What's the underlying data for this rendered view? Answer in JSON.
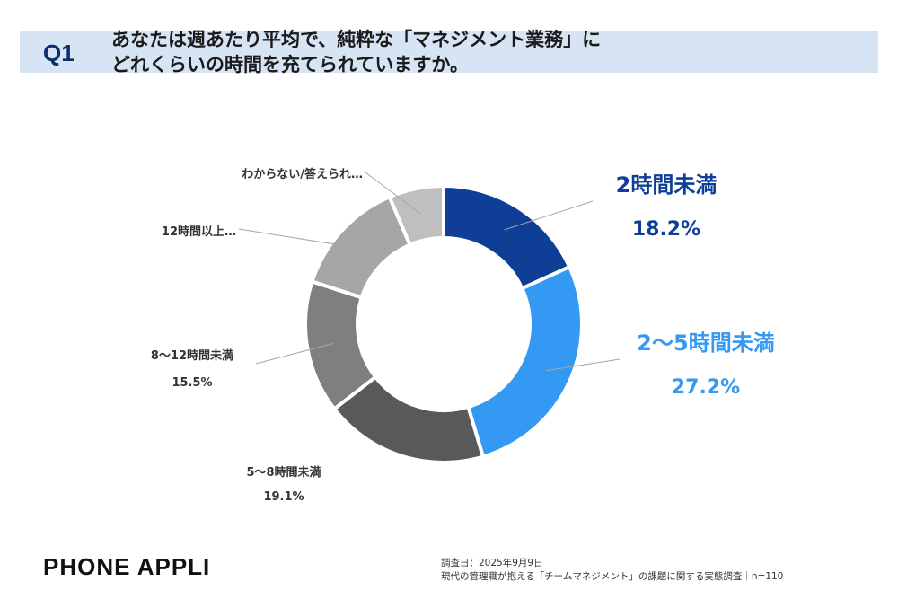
{
  "question": {
    "number": "Q1",
    "line1": "あなたは週あたり平均で、純粋な「マネジメント業務」に",
    "line2": "どれくらいの時間を充てられていますか。"
  },
  "chart_data": {
    "type": "pie",
    "variant": "donut",
    "slices": [
      {
        "label": "2時間未満",
        "value": 18.2,
        "value_label": "18.2%",
        "color": "#0f3e96"
      },
      {
        "label": "2～5時間未満",
        "value": 27.2,
        "value_label": "27.2%",
        "color": "#3399f3"
      },
      {
        "label": "5～8時間未満",
        "value": 19.1,
        "value_label": "19.1%",
        "color": "#595959"
      },
      {
        "label": "8～12時間未満",
        "value": 15.5,
        "value_label": "15.5%",
        "color": "#7f7f7f"
      },
      {
        "label": "12時間以上…",
        "value": 13.6,
        "value_label": "",
        "color": "#a6a6a6"
      },
      {
        "label": "わからない/答えられ…",
        "value": 6.4,
        "value_label": "",
        "color": "#bfbfbf"
      }
    ]
  },
  "footer": {
    "brand": "PHONE APPLI",
    "survey_date": "調査日：2025年9月9日",
    "survey_title": "現代の管理職が抱える「チームマネジメント」の課題に関する実態調査｜n=110"
  }
}
